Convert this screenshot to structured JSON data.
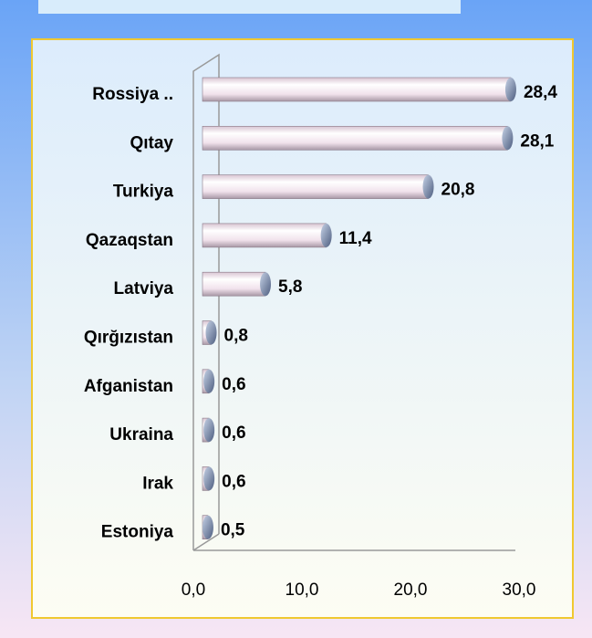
{
  "chart_data": {
    "type": "bar",
    "orientation": "horizontal",
    "categories": [
      "Rossiya ..",
      "Qıtay",
      "Turkiya",
      "Qazaqstan",
      "Latviya",
      "Qırğızıstan",
      "Afganistan",
      "Ukraina",
      "Irak",
      "Estoniya"
    ],
    "values": [
      28.4,
      28.1,
      20.8,
      11.4,
      5.8,
      0.8,
      0.6,
      0.6,
      0.6,
      0.5
    ],
    "value_labels": [
      "28,4",
      "28,1",
      "20,8",
      "11,4",
      "5,8",
      "0,8",
      "0,6",
      "0,6",
      "0,6",
      "0,5"
    ],
    "color": "#f4e6f0",
    "xlim": [
      0,
      30
    ],
    "xticks": [
      {
        "value": 0,
        "label": "0,0"
      },
      {
        "value": 10,
        "label": "10,0"
      },
      {
        "value": 20,
        "label": "20,0"
      },
      {
        "value": 30,
        "label": "30,0"
      }
    ]
  }
}
